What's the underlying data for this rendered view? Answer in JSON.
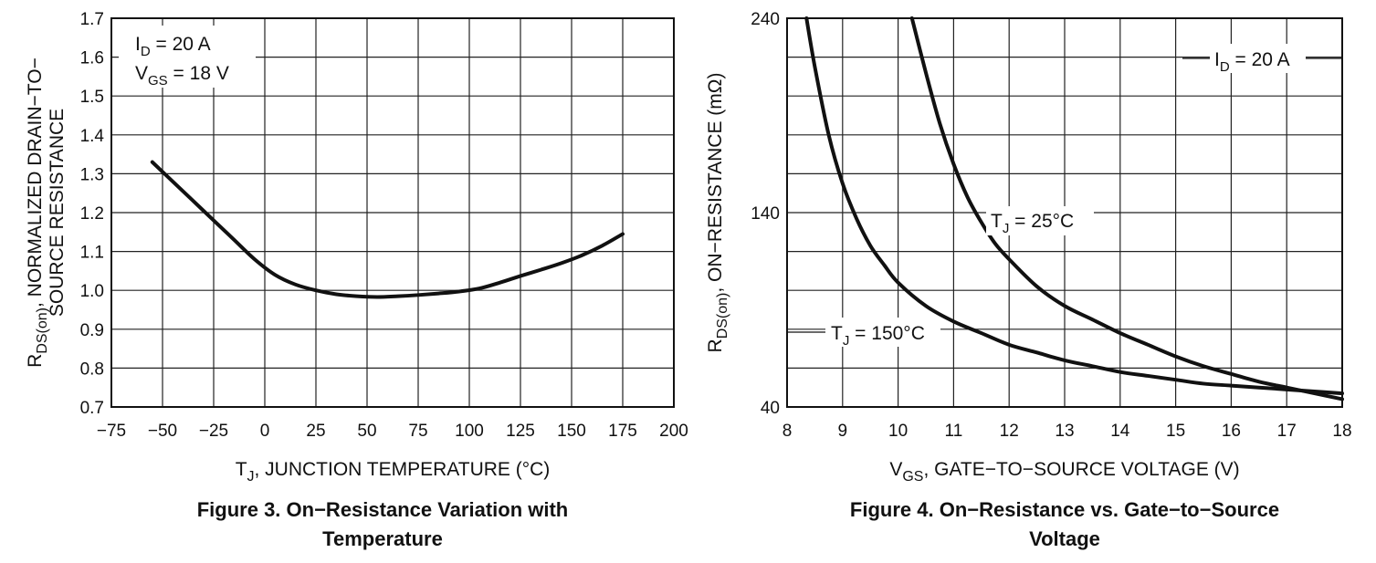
{
  "chart_data": [
    {
      "type": "line",
      "figure_caption": [
        "Figure 3. On−Resistance Variation with",
        "Temperature"
      ],
      "xlabel": {
        "main": "T",
        "sub": "J",
        "rest": ", JUNCTION TEMPERATURE (°C)"
      },
      "ylabel": {
        "line1_main": "R",
        "line1_sub": "DS(on)",
        "line1_rest": ", NORMALIZED DRAIN−TO−",
        "line2": "SOURCE RESISTANCE"
      },
      "xlim": [
        -75,
        200
      ],
      "ylim": [
        0.7,
        1.7
      ],
      "x_ticks": [
        -75,
        -50,
        -25,
        0,
        25,
        50,
        75,
        100,
        125,
        150,
        175,
        200
      ],
      "x_tick_labels": [
        "−75",
        "−50",
        "−25",
        "0",
        "25",
        "50",
        "75",
        "100",
        "125",
        "150",
        "175",
        "200"
      ],
      "y_ticks": [
        0.7,
        0.8,
        0.9,
        1.0,
        1.1,
        1.2,
        1.3,
        1.4,
        1.5,
        1.6,
        1.7
      ],
      "y_tick_labels": [
        "0.7",
        "0.8",
        "0.9",
        "1.0",
        "1.1",
        "1.2",
        "1.3",
        "1.4",
        "1.5",
        "1.6",
        "1.7"
      ],
      "grid": true,
      "annotations": [
        {
          "main": "I",
          "sub": "D",
          "rest": " = 20 A"
        },
        {
          "main": "V",
          "sub": "GS",
          "rest": " = 18 V"
        }
      ],
      "series": [
        {
          "name": "RDS(on) normalized",
          "x": [
            -55,
            -45,
            -35,
            -25,
            -15,
            -5,
            5,
            15,
            25,
            35,
            45,
            55,
            65,
            75,
            85,
            95,
            105,
            115,
            125,
            135,
            145,
            155,
            165,
            175
          ],
          "y": [
            1.33,
            1.28,
            1.23,
            1.18,
            1.13,
            1.08,
            1.04,
            1.015,
            1.0,
            0.99,
            0.985,
            0.983,
            0.985,
            0.988,
            0.992,
            0.997,
            1.005,
            1.02,
            1.037,
            1.053,
            1.07,
            1.09,
            1.115,
            1.145
          ]
        }
      ]
    },
    {
      "type": "line",
      "figure_caption": [
        "Figure 4. On−Resistance vs. Gate−to−Source",
        "Voltage"
      ],
      "xlabel": {
        "main": "V",
        "sub": "GS",
        "rest": ", GATE−TO−SOURCE VOLTAGE (V)"
      },
      "ylabel": {
        "main": "R",
        "sub": "DS(on)",
        "rest": ", ON−RESISTANCE (mΩ)"
      },
      "xlim": [
        8,
        18
      ],
      "ylim": [
        40,
        240
      ],
      "x_ticks": [
        8,
        9,
        10,
        11,
        12,
        13,
        14,
        15,
        16,
        17,
        18
      ],
      "x_tick_labels": [
        "8",
        "9",
        "10",
        "11",
        "12",
        "13",
        "14",
        "15",
        "16",
        "17",
        "18"
      ],
      "y_ticks": [
        40,
        140,
        240
      ],
      "y_tick_labels": [
        "40",
        "140",
        "240"
      ],
      "grid": true,
      "annotations": [
        {
          "main": "I",
          "sub": "D",
          "rest": " = 20 A"
        }
      ],
      "series": [
        {
          "name": "T_J = 25°C",
          "label": {
            "main": "T",
            "sub": "J",
            "rest": " = 25°C"
          },
          "x": [
            10.25,
            10.5,
            10.75,
            11.0,
            11.25,
            11.5,
            11.75,
            12.0,
            12.5,
            13.0,
            13.5,
            14.0,
            14.5,
            15.0,
            15.5,
            16.0,
            16.5,
            17.0,
            17.5,
            18.0
          ],
          "y": [
            240,
            212,
            186,
            165,
            148,
            135,
            124,
            116,
            102,
            92,
            85,
            78,
            72,
            66,
            61,
            57,
            53,
            50,
            47,
            44
          ]
        },
        {
          "name": "T_J = 150°C",
          "label": {
            "main": "T",
            "sub": "J",
            "rest": " = 150°C"
          },
          "x": [
            8.35,
            8.5,
            8.75,
            9.0,
            9.25,
            9.5,
            9.75,
            10.0,
            10.5,
            11.0,
            11.5,
            12.0,
            12.5,
            13.0,
            13.5,
            14.0,
            14.5,
            15.0,
            15.5,
            16.0,
            16.5,
            17.0,
            17.5,
            18.0
          ],
          "y": [
            240,
            215,
            180,
            155,
            137,
            123,
            113,
            104,
            92,
            84,
            78,
            72,
            68,
            64,
            61,
            58,
            56,
            54,
            52,
            51,
            50,
            49,
            48,
            47
          ]
        }
      ]
    }
  ]
}
